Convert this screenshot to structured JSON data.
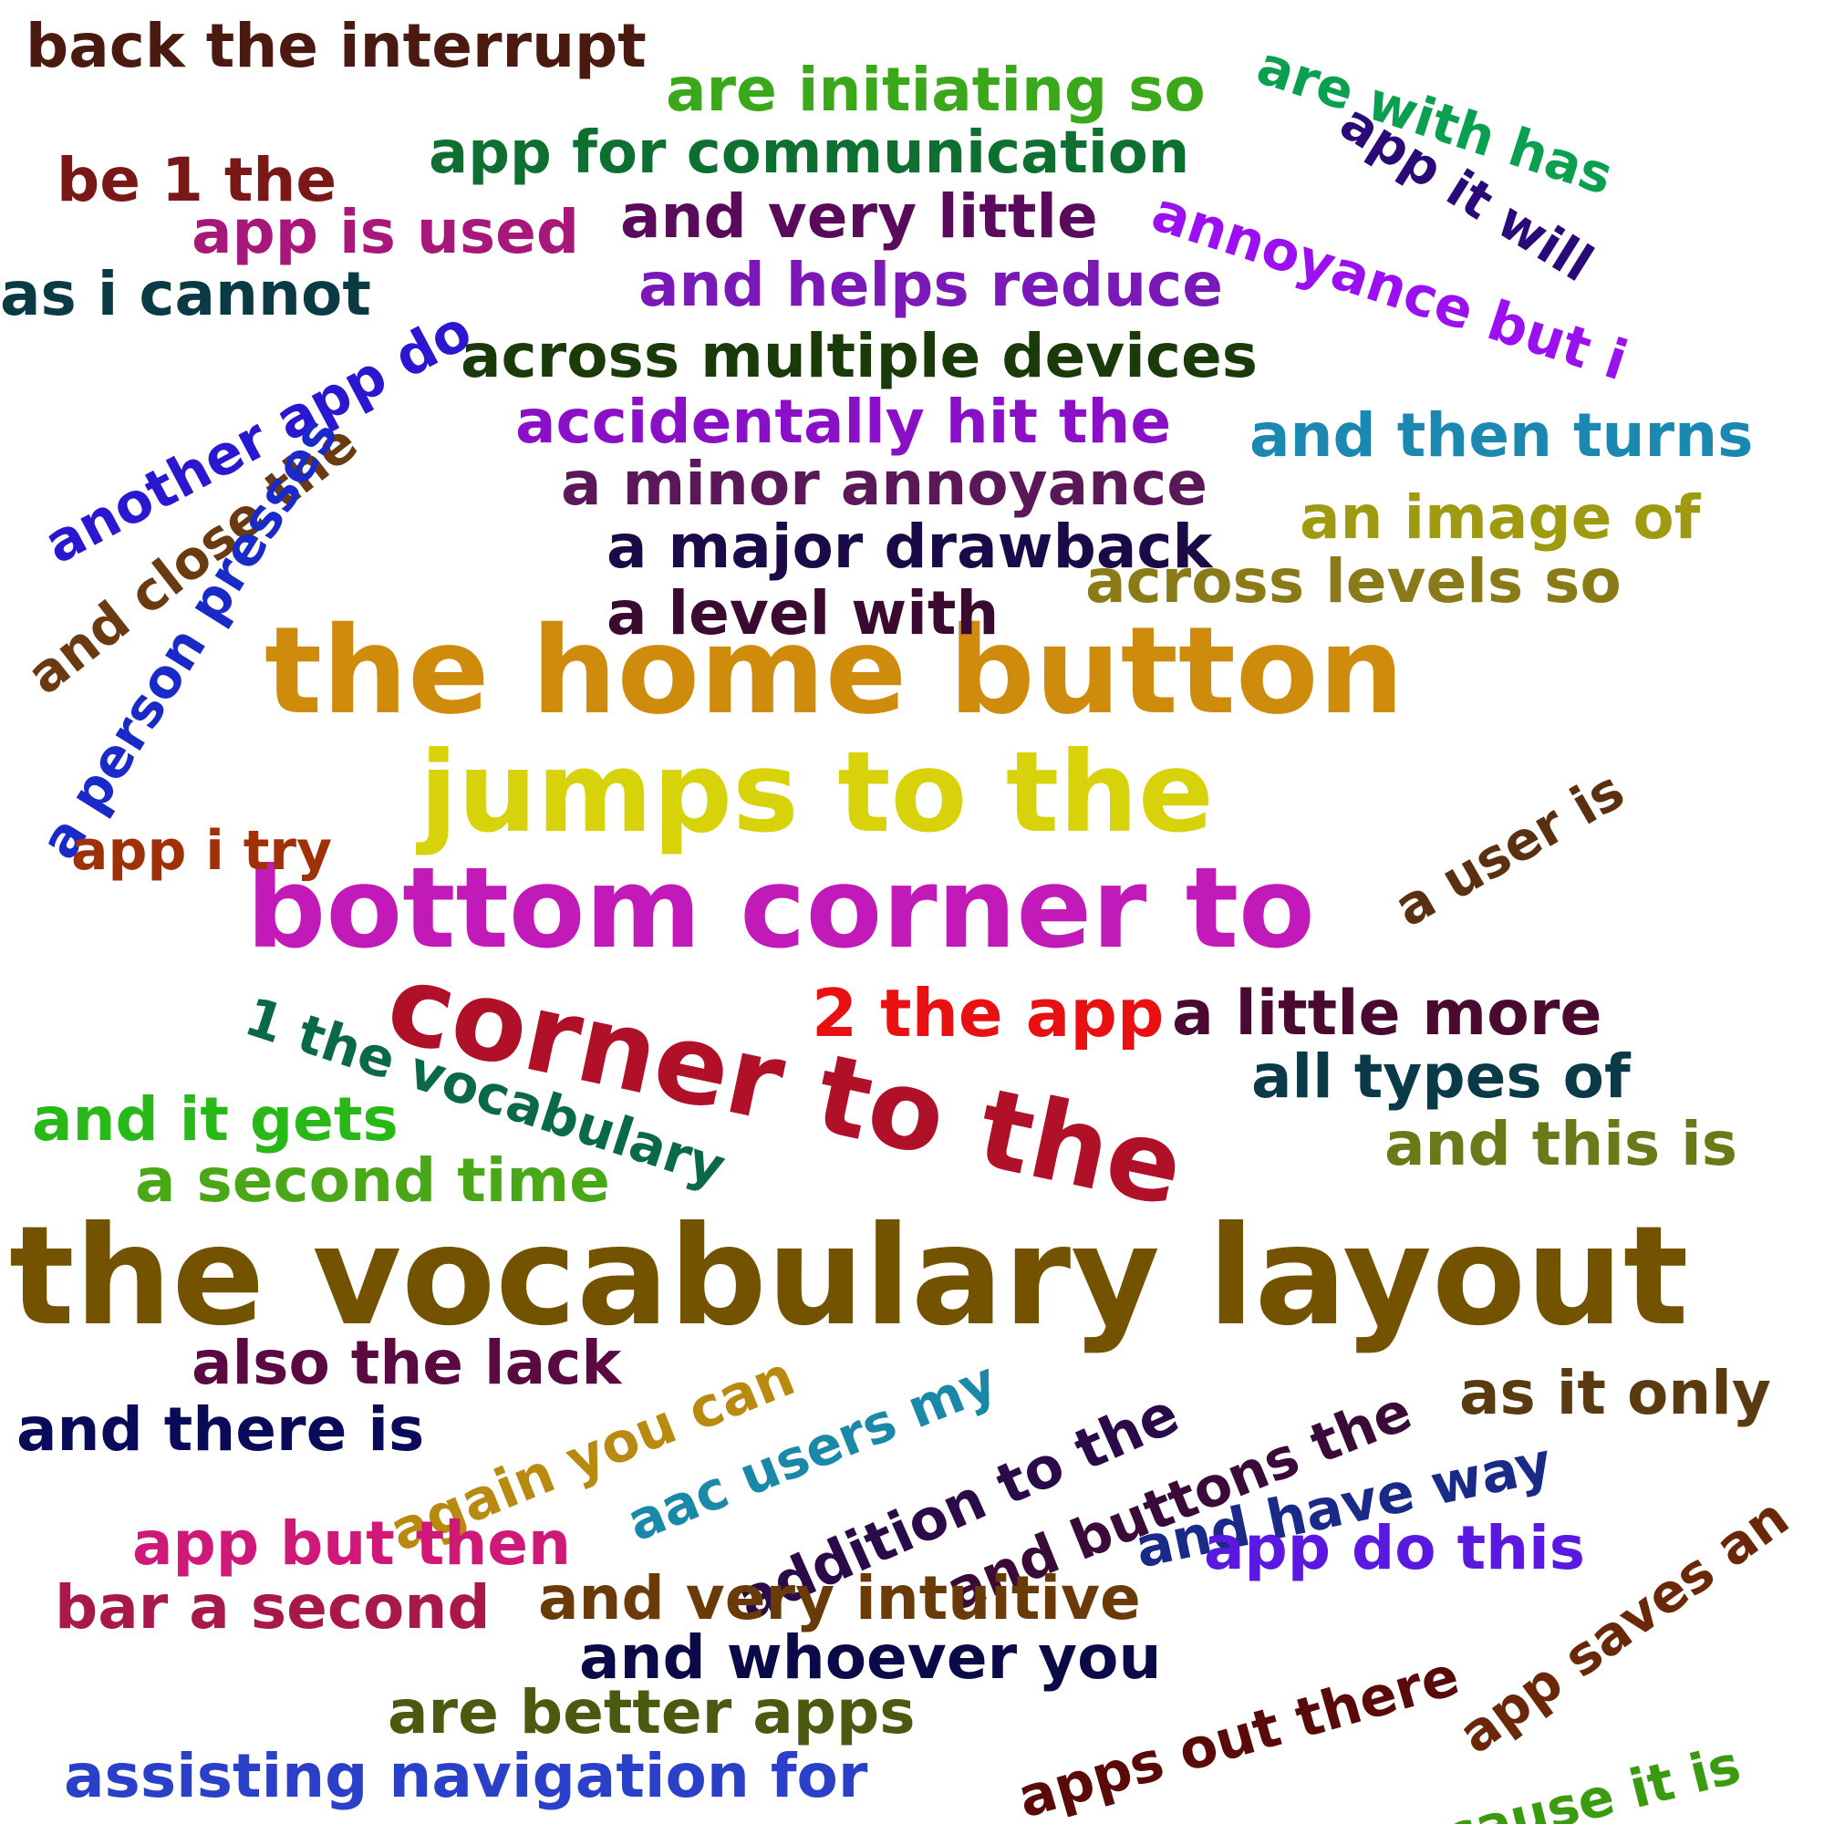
{
  "words": [
    {
      "text": "the vocabulary layout",
      "color": "#735200"
    },
    {
      "text": "the home button",
      "color": "#cf8b0c"
    },
    {
      "text": "bottom corner to",
      "color": "#c21ab8"
    },
    {
      "text": "jumps to the",
      "color": "#d8d20a"
    },
    {
      "text": "corner to the",
      "color": "#b01028"
    },
    {
      "text": "back the interrupt",
      "color": "#4a1a10"
    },
    {
      "text": "are initiating so",
      "color": "#3aa81a"
    },
    {
      "text": "are with has",
      "color": "#0aa050"
    },
    {
      "text": "app for communication",
      "color": "#0e7030"
    },
    {
      "text": "app it will",
      "color": "#2a0a78"
    },
    {
      "text": "be 1 the",
      "color": "#7a1818"
    },
    {
      "text": "app is used",
      "color": "#a8187a"
    },
    {
      "text": "and very little",
      "color": "#5a0a5a"
    },
    {
      "text": "annoyance but i",
      "color": "#9a10f0"
    },
    {
      "text": "as i cannot",
      "color": "#0a3a44"
    },
    {
      "text": "and helps reduce",
      "color": "#7a18b8"
    },
    {
      "text": "another app do",
      "color": "#2a18d0"
    },
    {
      "text": "across multiple devices",
      "color": "#1a3a0a"
    },
    {
      "text": "and close the",
      "color": "#6a3a10"
    },
    {
      "text": "accidentally hit the",
      "color": "#8a10c8"
    },
    {
      "text": "a person presses",
      "color": "#1a2ac8"
    },
    {
      "text": "and then turns",
      "color": "#1a88b0"
    },
    {
      "text": "a minor annoyance",
      "color": "#5a1858"
    },
    {
      "text": "an image of",
      "color": "#a09a10"
    },
    {
      "text": "a major drawback",
      "color": "#1a0a48"
    },
    {
      "text": "across levels so",
      "color": "#8a7a18"
    },
    {
      "text": "a level with",
      "color": "#3a0a30"
    },
    {
      "text": "a user is",
      "color": "#5a3010"
    },
    {
      "text": "app i try",
      "color": "#a03008"
    },
    {
      "text": "2 the app",
      "color": "#e81010"
    },
    {
      "text": "a little more",
      "color": "#4a0a30"
    },
    {
      "text": "1 the vocabulary",
      "color": "#0a6a48"
    },
    {
      "text": "all types of",
      "color": "#0a3a48"
    },
    {
      "text": "and it gets",
      "color": "#28b818"
    },
    {
      "text": "and this is",
      "color": "#6a7a18"
    },
    {
      "text": "a second time",
      "color": "#4aa818"
    },
    {
      "text": "also the lack",
      "color": "#5a0a40"
    },
    {
      "text": "again you can",
      "color": "#b88a10"
    },
    {
      "text": "aac users my",
      "color": "#1a88a8"
    },
    {
      "text": "addition to the",
      "color": "#2a0a48"
    },
    {
      "text": "and buttons the",
      "color": "#3a0a38"
    },
    {
      "text": "as it only",
      "color": "#5a3a10"
    },
    {
      "text": "and there is",
      "color": "#0a0a5a"
    },
    {
      "text": "and have way",
      "color": "#1a2a88"
    },
    {
      "text": "app saves an",
      "color": "#6a2808"
    },
    {
      "text": "app but then",
      "color": "#d01878"
    },
    {
      "text": "app do this",
      "color": "#5a18e0"
    },
    {
      "text": "bar a second",
      "color": "#a8184a"
    },
    {
      "text": "and very intuitive",
      "color": "#6a3a08"
    },
    {
      "text": "and whoever you",
      "color": "#0a0a48"
    },
    {
      "text": "apps out there",
      "color": "#5a0a08"
    },
    {
      "text": "are better apps",
      "color": "#4a5a10"
    },
    {
      "text": "assisting navigation for",
      "color": "#2a40c8"
    },
    {
      "text": "because it is",
      "color": "#3a9a10"
    }
  ]
}
